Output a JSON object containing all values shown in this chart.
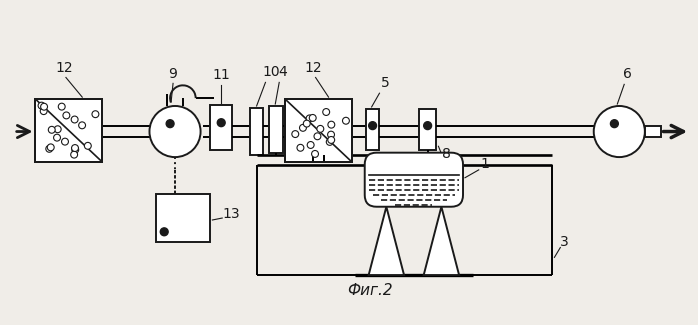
{
  "title": "Фиг.2",
  "bg_color": "#f0ede8",
  "line_color": "#1a1a1a",
  "fig_width": 6.98,
  "fig_height": 3.25,
  "dpi": 100
}
